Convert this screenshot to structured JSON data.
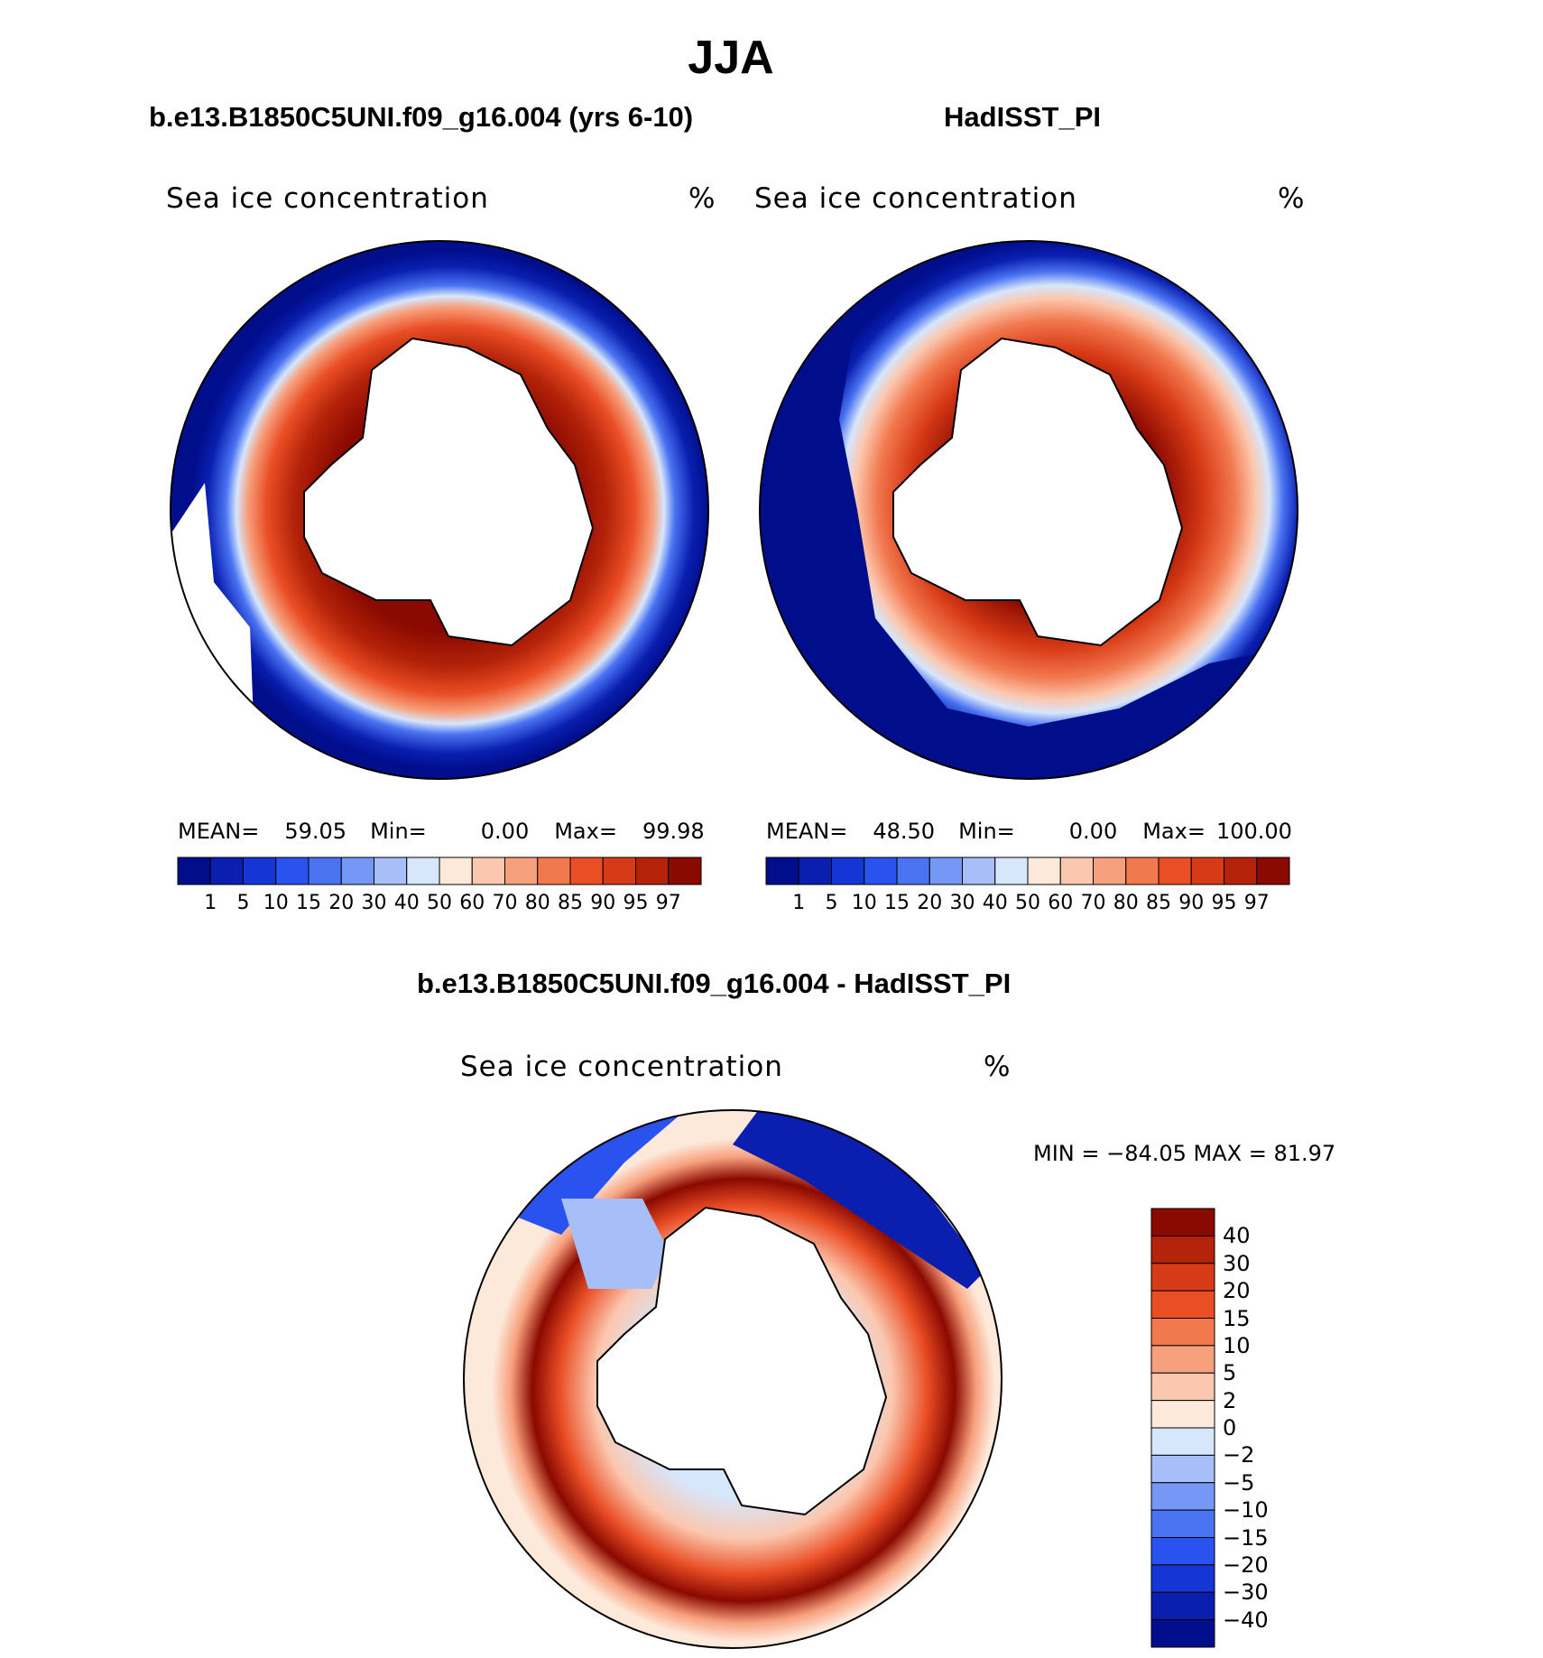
{
  "figure": {
    "title": "JJA",
    "variable_label": "Sea ice concentration",
    "units_label": "%"
  },
  "panels": [
    {
      "title": "b.e13.B1850C5UNI.f09_g16.004 (yrs 6-10)",
      "stats": {
        "mean_label": "MEAN=",
        "mean": "59.05",
        "min_label": "Min=",
        "min": "0.00",
        "max_label": "Max=",
        "max": "99.98"
      }
    },
    {
      "title": "HadISST_PI",
      "stats": {
        "mean_label": "MEAN=",
        "mean": "48.50",
        "min_label": "Min=",
        "min": "0.00",
        "max_label": "Max=",
        "max": "100.00"
      }
    }
  ],
  "diff_panel": {
    "title": "b.e13.B1850C5UNI.f09_g16.004 - HadISST_PI",
    "min_max_text": "MIN = −84.05 MAX =   81.97"
  },
  "chart_data": [
    {
      "type": "filled-contour-map",
      "name": "model",
      "region": "Southern Hemisphere polar stereographic",
      "color_levels": [
        "1",
        "5",
        "10",
        "15",
        "20",
        "30",
        "40",
        "50",
        "60",
        "70",
        "80",
        "85",
        "90",
        "95",
        "97"
      ],
      "colors": [
        "#000e8c",
        "#0a1fb0",
        "#1535d4",
        "#2a52ee",
        "#4a73f2",
        "#7597f5",
        "#a6bff8",
        "#d6e6fb",
        "#fde9da",
        "#fbc7ae",
        "#f7a07d",
        "#f2784e",
        "#ea4e25",
        "#d73a16",
        "#b42309",
        "#8a0900"
      ],
      "mean": 59.05,
      "min": 0.0,
      "max": 99.98
    },
    {
      "type": "filled-contour-map",
      "name": "observations",
      "region": "Southern Hemisphere polar stereographic",
      "color_levels": [
        "1",
        "5",
        "10",
        "15",
        "20",
        "30",
        "40",
        "50",
        "60",
        "70",
        "80",
        "85",
        "90",
        "95",
        "97"
      ],
      "colors": [
        "#000e8c",
        "#0a1fb0",
        "#1535d4",
        "#2a52ee",
        "#4a73f2",
        "#7597f5",
        "#a6bff8",
        "#d6e6fb",
        "#fde9da",
        "#fbc7ae",
        "#f7a07d",
        "#f2784e",
        "#ea4e25",
        "#d73a16",
        "#b42309",
        "#8a0900"
      ],
      "mean": 48.5,
      "min": 0.0,
      "max": 100.0
    },
    {
      "type": "filled-contour-map",
      "name": "difference",
      "region": "Southern Hemisphere polar stereographic",
      "color_levels": [
        "40",
        "30",
        "20",
        "15",
        "10",
        "5",
        "2",
        "0",
        "−2",
        "−5",
        "−10",
        "−15",
        "−20",
        "−30",
        "−40"
      ],
      "colors": [
        "#8a0900",
        "#b42309",
        "#d73a16",
        "#ea4e25",
        "#f2784e",
        "#f7a07d",
        "#fbc7ae",
        "#fde9da",
        "#d6e6fb",
        "#a6bff8",
        "#7597f5",
        "#4a73f2",
        "#2a52ee",
        "#1535d4",
        "#0a1fb0",
        "#000e8c"
      ],
      "min": -84.05,
      "max": 81.97
    }
  ]
}
